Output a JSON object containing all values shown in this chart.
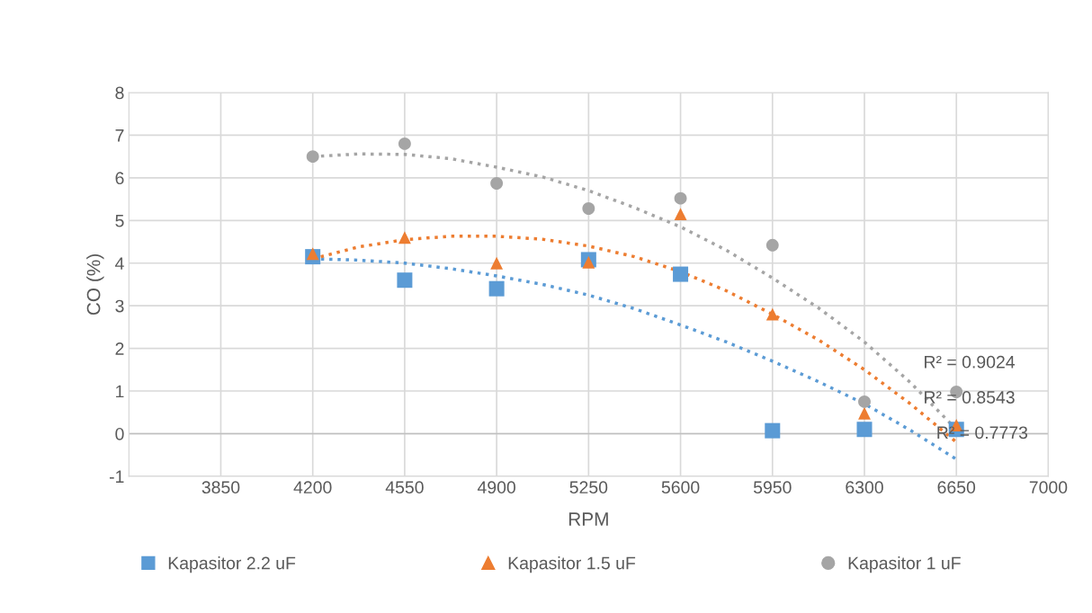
{
  "chart_data": {
    "type": "scatter",
    "xlabel": "RPM",
    "ylabel": "CO (%)",
    "xlim": [
      3500,
      7000
    ],
    "xticks": [
      {
        "value": 3500,
        "label": null
      },
      3850,
      4200,
      4550,
      4900,
      5250,
      5600,
      5950,
      6300,
      6650,
      7000
    ],
    "ylim": [
      -1,
      8
    ],
    "yticks": [
      -1,
      0,
      1,
      2,
      3,
      4,
      5,
      6,
      7,
      8
    ],
    "grid": true,
    "legend": "bottom",
    "series": [
      {
        "name": "Kapasitor 2.2 uF",
        "color": "#5b9bd5",
        "marker": "square",
        "x": [
          4200,
          4550,
          4900,
          5250,
          5600,
          5950,
          6300,
          6650
        ],
        "values": [
          4.15,
          3.6,
          3.4,
          4.08,
          3.74,
          0.07,
          0.1,
          0.1
        ]
      },
      {
        "name": "Kapasitor 1.5 uF",
        "color": "#ed7d31",
        "marker": "triangle",
        "x": [
          4200,
          4550,
          4900,
          5250,
          5600,
          5950,
          6300,
          6650
        ],
        "values": [
          4.22,
          4.6,
          4.0,
          4.02,
          5.15,
          2.8,
          0.48,
          0.2
        ]
      },
      {
        "name": "Kapasitor 1 uF",
        "color": "#a5a5a5",
        "marker": "circle",
        "x": [
          4200,
          4550,
          4900,
          5250,
          5600,
          5950,
          6300,
          6650
        ],
        "values": [
          6.5,
          6.8,
          5.87,
          5.28,
          5.52,
          4.42,
          0.75,
          0.98
        ]
      },
      {
        "type": "line",
        "line_style": "dotted",
        "color": "#5b9bd5",
        "x": [
          4200,
          4375,
          4550,
          4725,
          4900,
          5075,
          5250,
          5425,
          5600,
          5775,
          5950,
          6125,
          6300,
          6475,
          6650
        ],
        "values": [
          4.1,
          4.07,
          4.0,
          3.87,
          3.7,
          3.5,
          3.25,
          2.93,
          2.55,
          2.15,
          1.7,
          1.22,
          0.7,
          0.08,
          -0.6
        ]
      },
      {
        "type": "line",
        "line_style": "dotted",
        "color": "#ed7d31",
        "x": [
          4200,
          4375,
          4550,
          4725,
          4900,
          5075,
          5250,
          5425,
          5600,
          5775,
          5950,
          6125,
          6300,
          6475,
          6650
        ],
        "values": [
          4.1,
          4.38,
          4.55,
          4.63,
          4.63,
          4.56,
          4.4,
          4.15,
          3.8,
          3.35,
          2.8,
          2.2,
          1.5,
          0.7,
          -0.2
        ]
      },
      {
        "type": "line",
        "line_style": "dotted",
        "color": "#a5a5a5",
        "x": [
          4200,
          4375,
          4550,
          4725,
          4900,
          5075,
          5250,
          5425,
          5600,
          5775,
          5950,
          6125,
          6300,
          6475,
          6650
        ],
        "values": [
          6.5,
          6.56,
          6.55,
          6.45,
          6.25,
          6.02,
          5.7,
          5.3,
          4.85,
          4.3,
          3.65,
          2.95,
          2.15,
          1.2,
          0.1
        ]
      }
    ],
    "annotations": [
      "R² = 0.9024",
      "R² = 0.8543",
      "R² = 0.7773"
    ]
  }
}
